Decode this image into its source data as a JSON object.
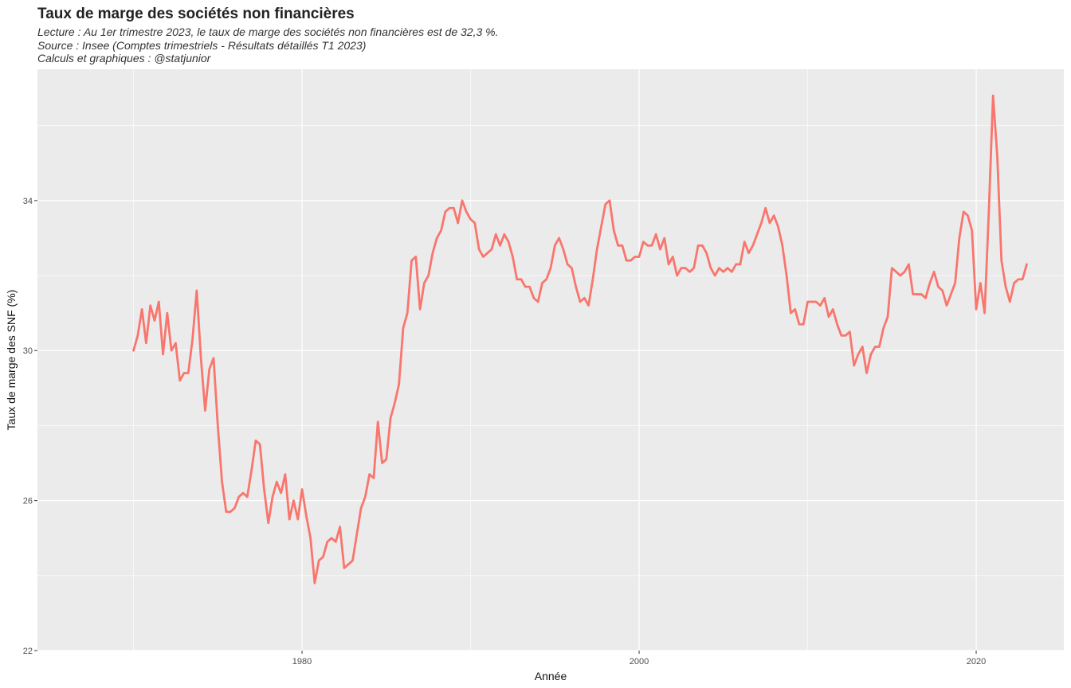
{
  "chart_data": {
    "type": "line",
    "title": "Taux de marge des sociétés non financières",
    "subtitle": [
      "Lecture : Au 1er trimestre 2023, le taux de marge des sociétés non financières est de 32,3 %.",
      "Source : Insee (Comptes trimestriels - Résultats détaillés T1 2023)",
      "Calculs et graphiques : @statjunior"
    ],
    "xlabel": "Année",
    "ylabel": "Taux de marge des SNF (%)",
    "xlim": [
      1964.3,
      2025.2
    ],
    "ylim": [
      22,
      37.5
    ],
    "x_ticks": [
      1980,
      2000,
      2020
    ],
    "x_tick_labels": [
      "1980",
      "2000",
      "2020"
    ],
    "y_ticks": [
      22,
      26,
      30,
      34
    ],
    "y_tick_labels": [
      "22",
      "26",
      "30",
      "34"
    ],
    "grid": true,
    "legend": "none",
    "line_color": "#F8766D",
    "panel_color": "#EBEBEB",
    "series": [
      {
        "x": [
          1970.0,
          1970.25,
          1970.5,
          1970.75,
          1971.0,
          1971.25,
          1971.5,
          1971.75,
          1972.0,
          1972.25,
          1972.5,
          1972.75,
          1973.0,
          1973.25,
          1973.5,
          1973.75,
          1974.0,
          1974.25,
          1974.5,
          1974.75,
          1975.0,
          1975.25,
          1975.5,
          1975.75,
          1976.0,
          1976.25,
          1976.5,
          1976.75,
          1977.0,
          1977.25,
          1977.5,
          1977.75,
          1978.0,
          1978.25,
          1978.5,
          1978.75,
          1979.0,
          1979.25,
          1979.5,
          1979.75,
          1980.0,
          1980.25,
          1980.5,
          1980.75,
          1981.0,
          1981.25,
          1981.5,
          1981.75,
          1982.0,
          1982.25,
          1982.5,
          1982.75,
          1983.0,
          1983.25,
          1983.5,
          1983.75,
          1984.0,
          1984.25,
          1984.5,
          1984.75,
          1985.0,
          1985.25,
          1985.5,
          1985.75,
          1986.0,
          1986.25,
          1986.5,
          1986.75,
          1987.0,
          1987.25,
          1987.5,
          1987.75,
          1988.0,
          1988.25,
          1988.5,
          1988.75,
          1989.0,
          1989.25,
          1989.5,
          1989.75,
          1990.0,
          1990.25,
          1990.5,
          1990.75,
          1991.0,
          1991.25,
          1991.5,
          1991.75,
          1992.0,
          1992.25,
          1992.5,
          1992.75,
          1993.0,
          1993.25,
          1993.5,
          1993.75,
          1994.0,
          1994.25,
          1994.5,
          1994.75,
          1995.0,
          1995.25,
          1995.5,
          1995.75,
          1996.0,
          1996.25,
          1996.5,
          1996.75,
          1997.0,
          1997.25,
          1997.5,
          1997.75,
          1998.0,
          1998.25,
          1998.5,
          1998.75,
          1999.0,
          1999.25,
          1999.5,
          1999.75,
          2000.0,
          2000.25,
          2000.5,
          2000.75,
          2001.0,
          2001.25,
          2001.5,
          2001.75,
          2002.0,
          2002.25,
          2002.5,
          2002.75,
          2003.0,
          2003.25,
          2003.5,
          2003.75,
          2004.0,
          2004.25,
          2004.5,
          2004.75,
          2005.0,
          2005.25,
          2005.5,
          2005.75,
          2006.0,
          2006.25,
          2006.5,
          2006.75,
          2007.0,
          2007.25,
          2007.5,
          2007.75,
          2008.0,
          2008.25,
          2008.5,
          2008.75,
          2009.0,
          2009.25,
          2009.5,
          2009.75,
          2010.0,
          2010.25,
          2010.5,
          2010.75,
          2011.0,
          2011.25,
          2011.5,
          2011.75,
          2012.0,
          2012.25,
          2012.5,
          2012.75,
          2013.0,
          2013.25,
          2013.5,
          2013.75,
          2014.0,
          2014.25,
          2014.5,
          2014.75,
          2015.0,
          2015.25,
          2015.5,
          2015.75,
          2016.0,
          2016.25,
          2016.5,
          2016.75,
          2017.0,
          2017.25,
          2017.5,
          2017.75,
          2018.0,
          2018.25,
          2018.5,
          2018.75,
          2019.0,
          2019.25,
          2019.5,
          2019.75,
          2020.0,
          2020.25,
          2020.5,
          2020.75,
          2021.0,
          2021.25,
          2021.5,
          2021.75,
          2022.0,
          2022.25,
          2022.5,
          2022.75,
          2023.0
        ],
        "y": [
          30.0,
          30.4,
          31.1,
          30.2,
          31.2,
          30.8,
          31.3,
          29.9,
          31.0,
          30.0,
          30.2,
          29.2,
          29.4,
          29.4,
          30.3,
          31.6,
          29.8,
          28.4,
          29.5,
          29.8,
          28.0,
          26.5,
          25.7,
          25.7,
          25.8,
          26.1,
          26.2,
          26.1,
          26.8,
          27.6,
          27.5,
          26.3,
          25.4,
          26.1,
          26.5,
          26.2,
          26.7,
          25.5,
          26.0,
          25.5,
          26.3,
          25.6,
          25.0,
          23.8,
          24.4,
          24.5,
          24.9,
          25.0,
          24.9,
          25.3,
          24.2,
          24.3,
          24.4,
          25.1,
          25.8,
          26.1,
          26.7,
          26.6,
          28.1,
          27.0,
          27.1,
          28.2,
          28.6,
          29.1,
          30.6,
          31.0,
          32.4,
          32.5,
          31.1,
          31.8,
          32.0,
          32.6,
          33.0,
          33.2,
          33.7,
          33.8,
          33.8,
          33.4,
          34.0,
          33.7,
          33.5,
          33.4,
          32.7,
          32.5,
          32.6,
          32.7,
          33.1,
          32.8,
          33.1,
          32.9,
          32.5,
          31.9,
          31.9,
          31.7,
          31.7,
          31.4,
          31.3,
          31.8,
          31.9,
          32.2,
          32.8,
          33.0,
          32.7,
          32.3,
          32.2,
          31.7,
          31.3,
          31.4,
          31.2,
          31.9,
          32.7,
          33.3,
          33.9,
          34.0,
          33.2,
          32.8,
          32.8,
          32.4,
          32.4,
          32.5,
          32.5,
          32.9,
          32.8,
          32.8,
          33.1,
          32.7,
          33.0,
          32.3,
          32.5,
          32.0,
          32.2,
          32.2,
          32.1,
          32.2,
          32.8,
          32.8,
          32.6,
          32.2,
          32.0,
          32.2,
          32.1,
          32.2,
          32.1,
          32.3,
          32.3,
          32.9,
          32.6,
          32.8,
          33.1,
          33.4,
          33.8,
          33.4,
          33.6,
          33.3,
          32.8,
          32.0,
          31.0,
          31.1,
          30.7,
          30.7,
          31.3,
          31.3,
          31.3,
          31.2,
          31.4,
          30.9,
          31.1,
          30.7,
          30.4,
          30.4,
          30.5,
          29.6,
          29.9,
          30.1,
          29.4,
          29.9,
          30.1,
          30.1,
          30.6,
          30.9,
          32.2,
          32.1,
          32.0,
          32.1,
          32.3,
          31.5,
          31.5,
          31.5,
          31.4,
          31.8,
          32.1,
          31.7,
          31.6,
          31.2,
          31.5,
          31.8,
          33.0,
          33.7,
          33.6,
          33.2,
          31.1,
          31.8,
          31.0,
          33.7,
          36.8,
          35.2,
          32.4,
          31.7,
          31.3,
          31.8,
          31.9,
          31.9,
          32.3
        ]
      }
    ]
  }
}
